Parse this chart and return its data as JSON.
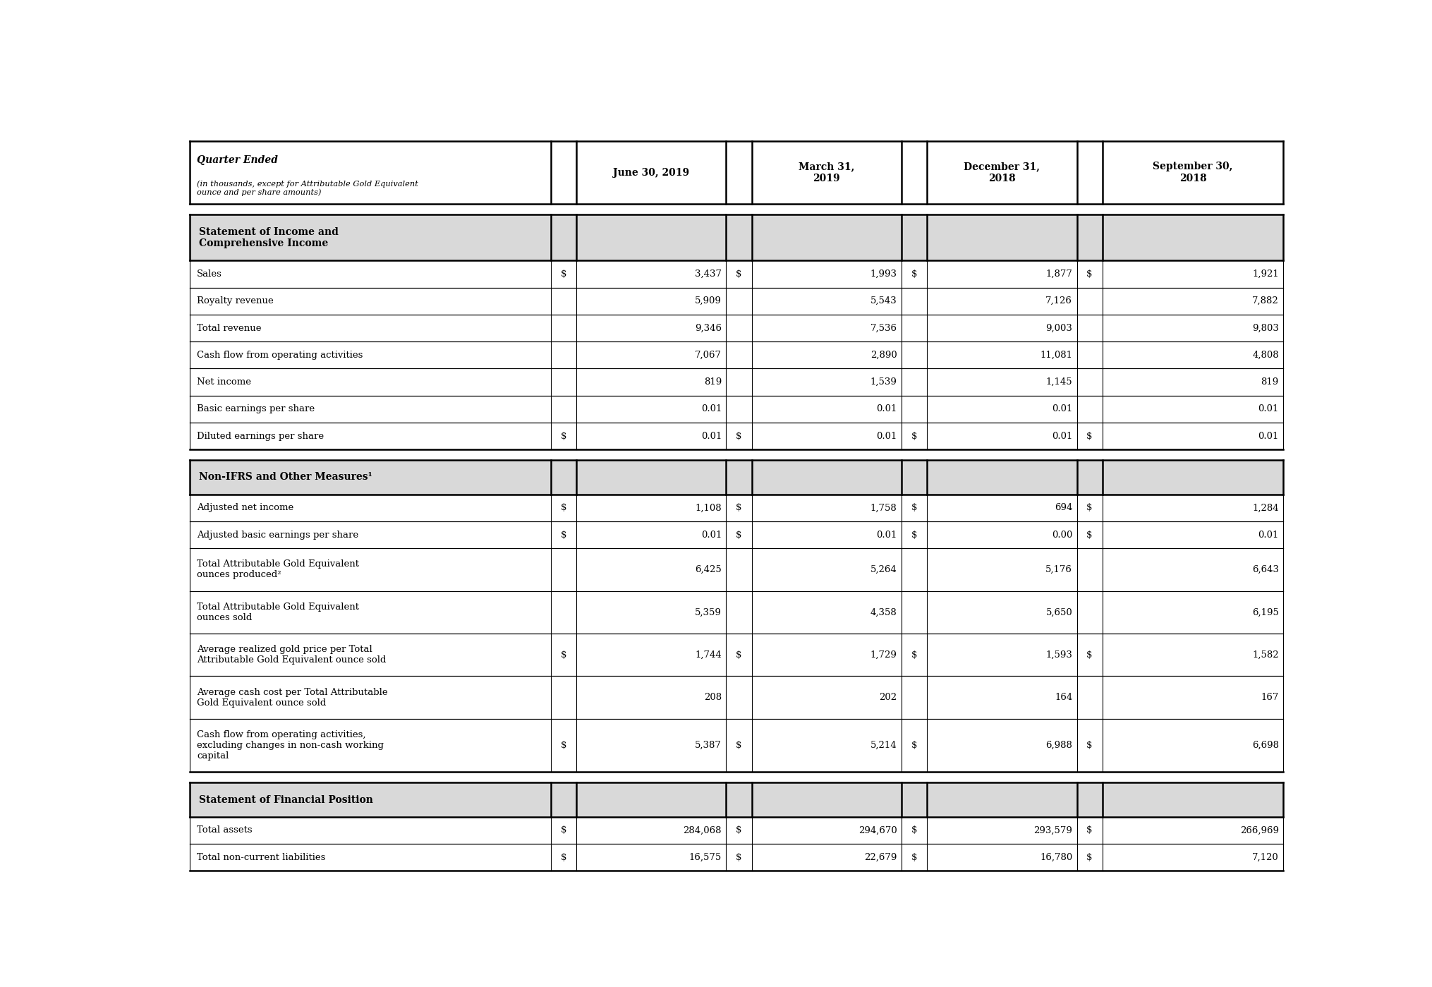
{
  "section1_header": "Statement of Income and\nComprehensive Income",
  "section1_rows": [
    {
      "label": "Sales",
      "dollar1": "$",
      "v1": "3,437",
      "dollar2": "$",
      "v2": "1,993",
      "dollar3": "$",
      "v3": "1,877",
      "dollar4": "$",
      "v4": "1,921"
    },
    {
      "label": "Royalty revenue",
      "dollar1": "",
      "v1": "5,909",
      "dollar2": "",
      "v2": "5,543",
      "dollar3": "",
      "v3": "7,126",
      "dollar4": "",
      "v4": "7,882"
    },
    {
      "label": "Total revenue",
      "dollar1": "",
      "v1": "9,346",
      "dollar2": "",
      "v2": "7,536",
      "dollar3": "",
      "v3": "9,003",
      "dollar4": "",
      "v4": "9,803"
    },
    {
      "label": "Cash flow from operating activities",
      "dollar1": "",
      "v1": "7,067",
      "dollar2": "",
      "v2": "2,890",
      "dollar3": "",
      "v3": "11,081",
      "dollar4": "",
      "v4": "4,808"
    },
    {
      "label": "Net income",
      "dollar1": "",
      "v1": "819",
      "dollar2": "",
      "v2": "1,539",
      "dollar3": "",
      "v3": "1,145",
      "dollar4": "",
      "v4": "819"
    },
    {
      "label": "Basic earnings per share",
      "dollar1": "",
      "v1": "0.01",
      "dollar2": "",
      "v2": "0.01",
      "dollar3": "",
      "v3": "0.01",
      "dollar4": "",
      "v4": "0.01"
    },
    {
      "label": "Diluted earnings per share",
      "dollar1": "$",
      "v1": "0.01",
      "dollar2": "$",
      "v2": "0.01",
      "dollar3": "$",
      "v3": "0.01",
      "dollar4": "$",
      "v4": "0.01"
    }
  ],
  "section2_header": "Non-IFRS and Other Measures¹",
  "section2_rows": [
    {
      "label": "Adjusted net income",
      "dollar1": "$",
      "v1": "1,108",
      "dollar2": "$",
      "v2": "1,758",
      "dollar3": "$",
      "v3": "694",
      "dollar4": "$",
      "v4": "1,284"
    },
    {
      "label": "Adjusted basic earnings per share",
      "dollar1": "$",
      "v1": "0.01",
      "dollar2": "$",
      "v2": "0.01",
      "dollar3": "$",
      "v3": "0.00",
      "dollar4": "$",
      "v4": "0.01"
    },
    {
      "label": "Total Attributable Gold Equivalent\nounces produced²",
      "dollar1": "",
      "v1": "6,425",
      "dollar2": "",
      "v2": "5,264",
      "dollar3": "",
      "v3": "5,176",
      "dollar4": "",
      "v4": "6,643"
    },
    {
      "label": "Total Attributable Gold Equivalent\nounces sold",
      "dollar1": "",
      "v1": "5,359",
      "dollar2": "",
      "v2": "4,358",
      "dollar3": "",
      "v3": "5,650",
      "dollar4": "",
      "v4": "6,195"
    },
    {
      "label": "Average realized gold price per Total\nAttributable Gold Equivalent ounce sold",
      "dollar1": "$",
      "v1": "1,744",
      "dollar2": "$",
      "v2": "1,729",
      "dollar3": "$",
      "v3": "1,593",
      "dollar4": "$",
      "v4": "1,582"
    },
    {
      "label": "Average cash cost per Total Attributable\nGold Equivalent ounce sold",
      "dollar1": "",
      "v1": "208",
      "dollar2": "",
      "v2": "202",
      "dollar3": "",
      "v3": "164",
      "dollar4": "",
      "v4": "167"
    },
    {
      "label": "Cash flow from operating activities,\nexcluding changes in non-cash working\ncapital",
      "dollar1": "$",
      "v1": "5,387",
      "dollar2": "$",
      "v2": "5,214",
      "dollar3": "$",
      "v3": "6,988",
      "dollar4": "$",
      "v4": "6,698"
    }
  ],
  "section3_header": "Statement of Financial Position",
  "section3_rows": [
    {
      "label": "Total assets",
      "dollar1": "$",
      "v1": "284,068",
      "dollar2": "$",
      "v2": "294,670",
      "dollar3": "$",
      "v3": "293,579",
      "dollar4": "$",
      "v4": "266,969"
    },
    {
      "label": "Total non-current liabilities",
      "dollar1": "$",
      "v1": "16,575",
      "dollar2": "$",
      "v2": "22,679",
      "dollar3": "$",
      "v3": "16,780",
      "dollar4": "$",
      "v4": "7,120"
    }
  ],
  "bg_header": "#d9d9d9",
  "bg_white": "#ffffff",
  "border_color": "#000000",
  "header_col0_line1": "Quarter Ended",
  "header_col0_line2": "(in thousands, except for Attributable Gold Equivalent\nounce and per share amounts)",
  "header_col2": "June 30, 2019",
  "header_col4": "March 31,\n2019",
  "header_col6": "December 31,\n2018",
  "header_col8": "September 30,\n2018"
}
